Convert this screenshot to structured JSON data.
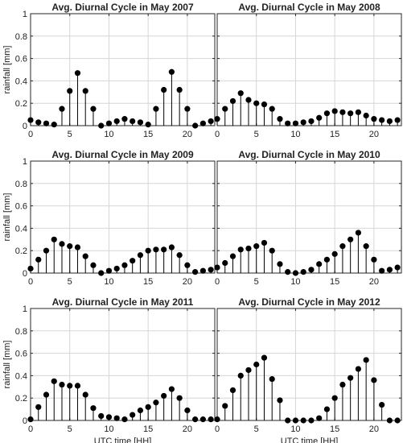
{
  "chart_data": [
    {
      "type": "stem",
      "title": "Avg. Diurnal Cycle in May 2007",
      "ylabel": "rainfall [mm]",
      "xlabel": "",
      "xlim": [
        0,
        23.5
      ],
      "ylim": [
        0,
        1
      ],
      "xticks": [
        0,
        5,
        10,
        15,
        20
      ],
      "yticks": [
        0,
        0.2,
        0.4,
        0.6,
        0.8,
        1
      ],
      "ytick_labels": [
        "0",
        "0.2",
        "0.4",
        "0.6",
        "0.8",
        "1"
      ],
      "grid": true,
      "x": [
        0,
        1,
        2,
        3,
        4,
        5,
        6,
        7,
        8,
        9,
        10,
        11,
        12,
        13,
        14,
        15,
        16,
        17,
        18,
        19,
        20,
        21,
        22,
        23
      ],
      "values": [
        0.05,
        0.03,
        0.02,
        0.01,
        0.15,
        0.31,
        0.47,
        0.31,
        0.15,
        0.0,
        0.02,
        0.04,
        0.06,
        0.04,
        0.03,
        0.01,
        0.15,
        0.32,
        0.48,
        0.32,
        0.15,
        0.0,
        0.02,
        0.04
      ]
    },
    {
      "type": "stem",
      "title": "Avg. Diurnal Cycle in May 2008",
      "ylabel": "",
      "xlabel": "",
      "xlim": [
        0,
        23.5
      ],
      "ylim": [
        0,
        1
      ],
      "xticks": [
        0,
        5,
        10,
        15,
        20
      ],
      "yticks": [
        0,
        0.2,
        0.4,
        0.6,
        0.8,
        1
      ],
      "ytick_labels": [
        "",
        "",
        "",
        "",
        "",
        ""
      ],
      "grid": true,
      "x": [
        0,
        1,
        2,
        3,
        4,
        5,
        6,
        7,
        8,
        9,
        10,
        11,
        12,
        13,
        14,
        15,
        16,
        17,
        18,
        19,
        20,
        21,
        22,
        23
      ],
      "values": [
        0.06,
        0.15,
        0.22,
        0.29,
        0.23,
        0.2,
        0.19,
        0.15,
        0.06,
        0.02,
        0.02,
        0.03,
        0.04,
        0.07,
        0.11,
        0.13,
        0.12,
        0.11,
        0.12,
        0.09,
        0.06,
        0.05,
        0.04,
        0.05
      ]
    },
    {
      "type": "stem",
      "title": "Avg. Diurnal Cycle in May 2009",
      "ylabel": "rainfall [mm]",
      "xlabel": "",
      "xlim": [
        0,
        23.5
      ],
      "ylim": [
        0,
        1
      ],
      "xticks": [
        0,
        5,
        10,
        15,
        20
      ],
      "yticks": [
        0,
        0.2,
        0.4,
        0.6,
        0.8,
        1
      ],
      "ytick_labels": [
        "0",
        "0.2",
        "0.4",
        "0.6",
        "0.8",
        "1"
      ],
      "grid": true,
      "x": [
        0,
        1,
        2,
        3,
        4,
        5,
        6,
        7,
        8,
        9,
        10,
        11,
        12,
        13,
        14,
        15,
        16,
        17,
        18,
        19,
        20,
        21,
        22,
        23
      ],
      "values": [
        0.04,
        0.12,
        0.2,
        0.3,
        0.26,
        0.24,
        0.23,
        0.15,
        0.07,
        0.0,
        0.02,
        0.04,
        0.07,
        0.11,
        0.16,
        0.2,
        0.21,
        0.21,
        0.23,
        0.16,
        0.07,
        0.01,
        0.02,
        0.03
      ]
    },
    {
      "type": "stem",
      "title": "Avg. Diurnal Cycle in May 2010",
      "ylabel": "",
      "xlabel": "",
      "xlim": [
        0,
        23.5
      ],
      "ylim": [
        0,
        1
      ],
      "xticks": [
        0,
        5,
        10,
        15,
        20
      ],
      "yticks": [
        0,
        0.2,
        0.4,
        0.6,
        0.8,
        1
      ],
      "ytick_labels": [
        "",
        "",
        "",
        "",
        "",
        ""
      ],
      "grid": true,
      "x": [
        0,
        1,
        2,
        3,
        4,
        5,
        6,
        7,
        8,
        9,
        10,
        11,
        12,
        13,
        14,
        15,
        16,
        17,
        18,
        19,
        20,
        21,
        22,
        23
      ],
      "values": [
        0.05,
        0.09,
        0.15,
        0.21,
        0.22,
        0.24,
        0.27,
        0.2,
        0.08,
        0.01,
        0.0,
        0.01,
        0.03,
        0.08,
        0.12,
        0.17,
        0.24,
        0.3,
        0.36,
        0.24,
        0.12,
        0.02,
        0.03,
        0.05
      ]
    },
    {
      "type": "stem",
      "title": "Avg. Diurnal Cycle in May 2011",
      "ylabel": "rainfall [mm]",
      "xlabel": "UTC time [HH]",
      "xlim": [
        0,
        23.5
      ],
      "ylim": [
        0,
        1
      ],
      "xticks": [
        0,
        5,
        10,
        15,
        20
      ],
      "yticks": [
        0,
        0.2,
        0.4,
        0.6,
        0.8,
        1
      ],
      "ytick_labels": [
        "0",
        "0.2",
        "0.4",
        "0.6",
        "0.8",
        "1"
      ],
      "grid": true,
      "x": [
        0,
        1,
        2,
        3,
        4,
        5,
        6,
        7,
        8,
        9,
        10,
        11,
        12,
        13,
        14,
        15,
        16,
        17,
        18,
        19,
        20,
        21,
        22,
        23
      ],
      "values": [
        0.01,
        0.12,
        0.23,
        0.35,
        0.32,
        0.31,
        0.31,
        0.23,
        0.11,
        0.04,
        0.03,
        0.02,
        0.01,
        0.05,
        0.09,
        0.12,
        0.16,
        0.22,
        0.28,
        0.2,
        0.09,
        0.01,
        0.01,
        0.01
      ]
    },
    {
      "type": "stem",
      "title": "Avg. Diurnal Cycle in May 2012",
      "ylabel": "",
      "xlabel": "UTC time [HH]",
      "xlim": [
        0,
        23.5
      ],
      "ylim": [
        0,
        1
      ],
      "xticks": [
        0,
        5,
        10,
        15,
        20
      ],
      "yticks": [
        0,
        0.2,
        0.4,
        0.6,
        0.8,
        1
      ],
      "ytick_labels": [
        "",
        "",
        "",
        "",
        "",
        ""
      ],
      "grid": true,
      "x": [
        0,
        1,
        2,
        3,
        4,
        5,
        6,
        7,
        8,
        9,
        10,
        11,
        12,
        13,
        14,
        15,
        16,
        17,
        18,
        19,
        20,
        21,
        22,
        23
      ],
      "values": [
        0.01,
        0.13,
        0.27,
        0.4,
        0.45,
        0.5,
        0.56,
        0.37,
        0.18,
        0.0,
        0.0,
        0.0,
        0.0,
        0.02,
        0.1,
        0.2,
        0.32,
        0.38,
        0.46,
        0.54,
        0.36,
        0.14,
        0.0,
        0.0
      ]
    }
  ]
}
